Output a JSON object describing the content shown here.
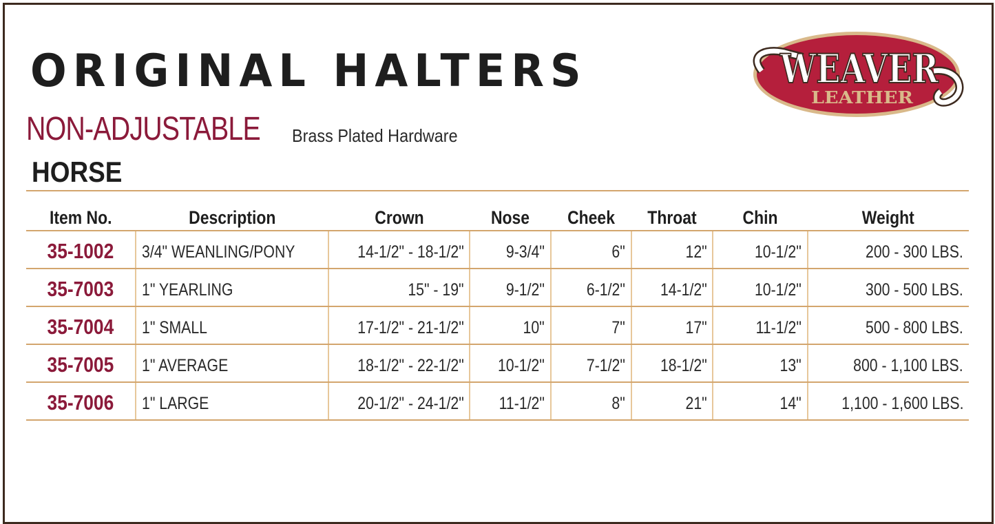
{
  "title": "ORIGINAL HALTERS",
  "subtitle": "NON-ADJUSTABLE",
  "subtitle_note": "Brass Plated Hardware",
  "section": "HORSE",
  "logo": {
    "line1": "WEAVER",
    "line2": "LEATHER",
    "colors": {
      "red": "#b51f3c",
      "tan": "#d9b98a"
    }
  },
  "colors": {
    "accent": "#8b1a3a",
    "rule": "#d3a56d",
    "border": "#3d2a1f"
  },
  "table": {
    "headers": [
      "Item No.",
      "Description",
      "Crown",
      "Nose",
      "Cheek",
      "Throat",
      "Chin",
      "Weight"
    ],
    "rows": [
      [
        "35-1002",
        "3/4\" WEANLING/PONY",
        "14-1/2\" - 18-1/2\"",
        "9-3/4\"",
        "6\"",
        "12\"",
        "10-1/2\"",
        "200 - 300 LBS."
      ],
      [
        "35-7003",
        "1\" YEARLING",
        "15\" - 19\"",
        "9-1/2\"",
        "6-1/2\"",
        "14-1/2\"",
        "10-1/2\"",
        "300 - 500 LBS."
      ],
      [
        "35-7004",
        "1\" SMALL",
        "17-1/2\" - 21-1/2\"",
        "10\"",
        "7\"",
        "17\"",
        "11-1/2\"",
        "500 - 800 LBS."
      ],
      [
        "35-7005",
        "1\" AVERAGE",
        "18-1/2\" - 22-1/2\"",
        "10-1/2\"",
        "7-1/2\"",
        "18-1/2\"",
        "13\"",
        "800 - 1,100 LBS."
      ],
      [
        "35-7006",
        "1\" LARGE",
        "20-1/2\" - 24-1/2\"",
        "11-1/2\"",
        "8\"",
        "21\"",
        "14\"",
        "1,100 - 1,600 LBS."
      ]
    ]
  }
}
